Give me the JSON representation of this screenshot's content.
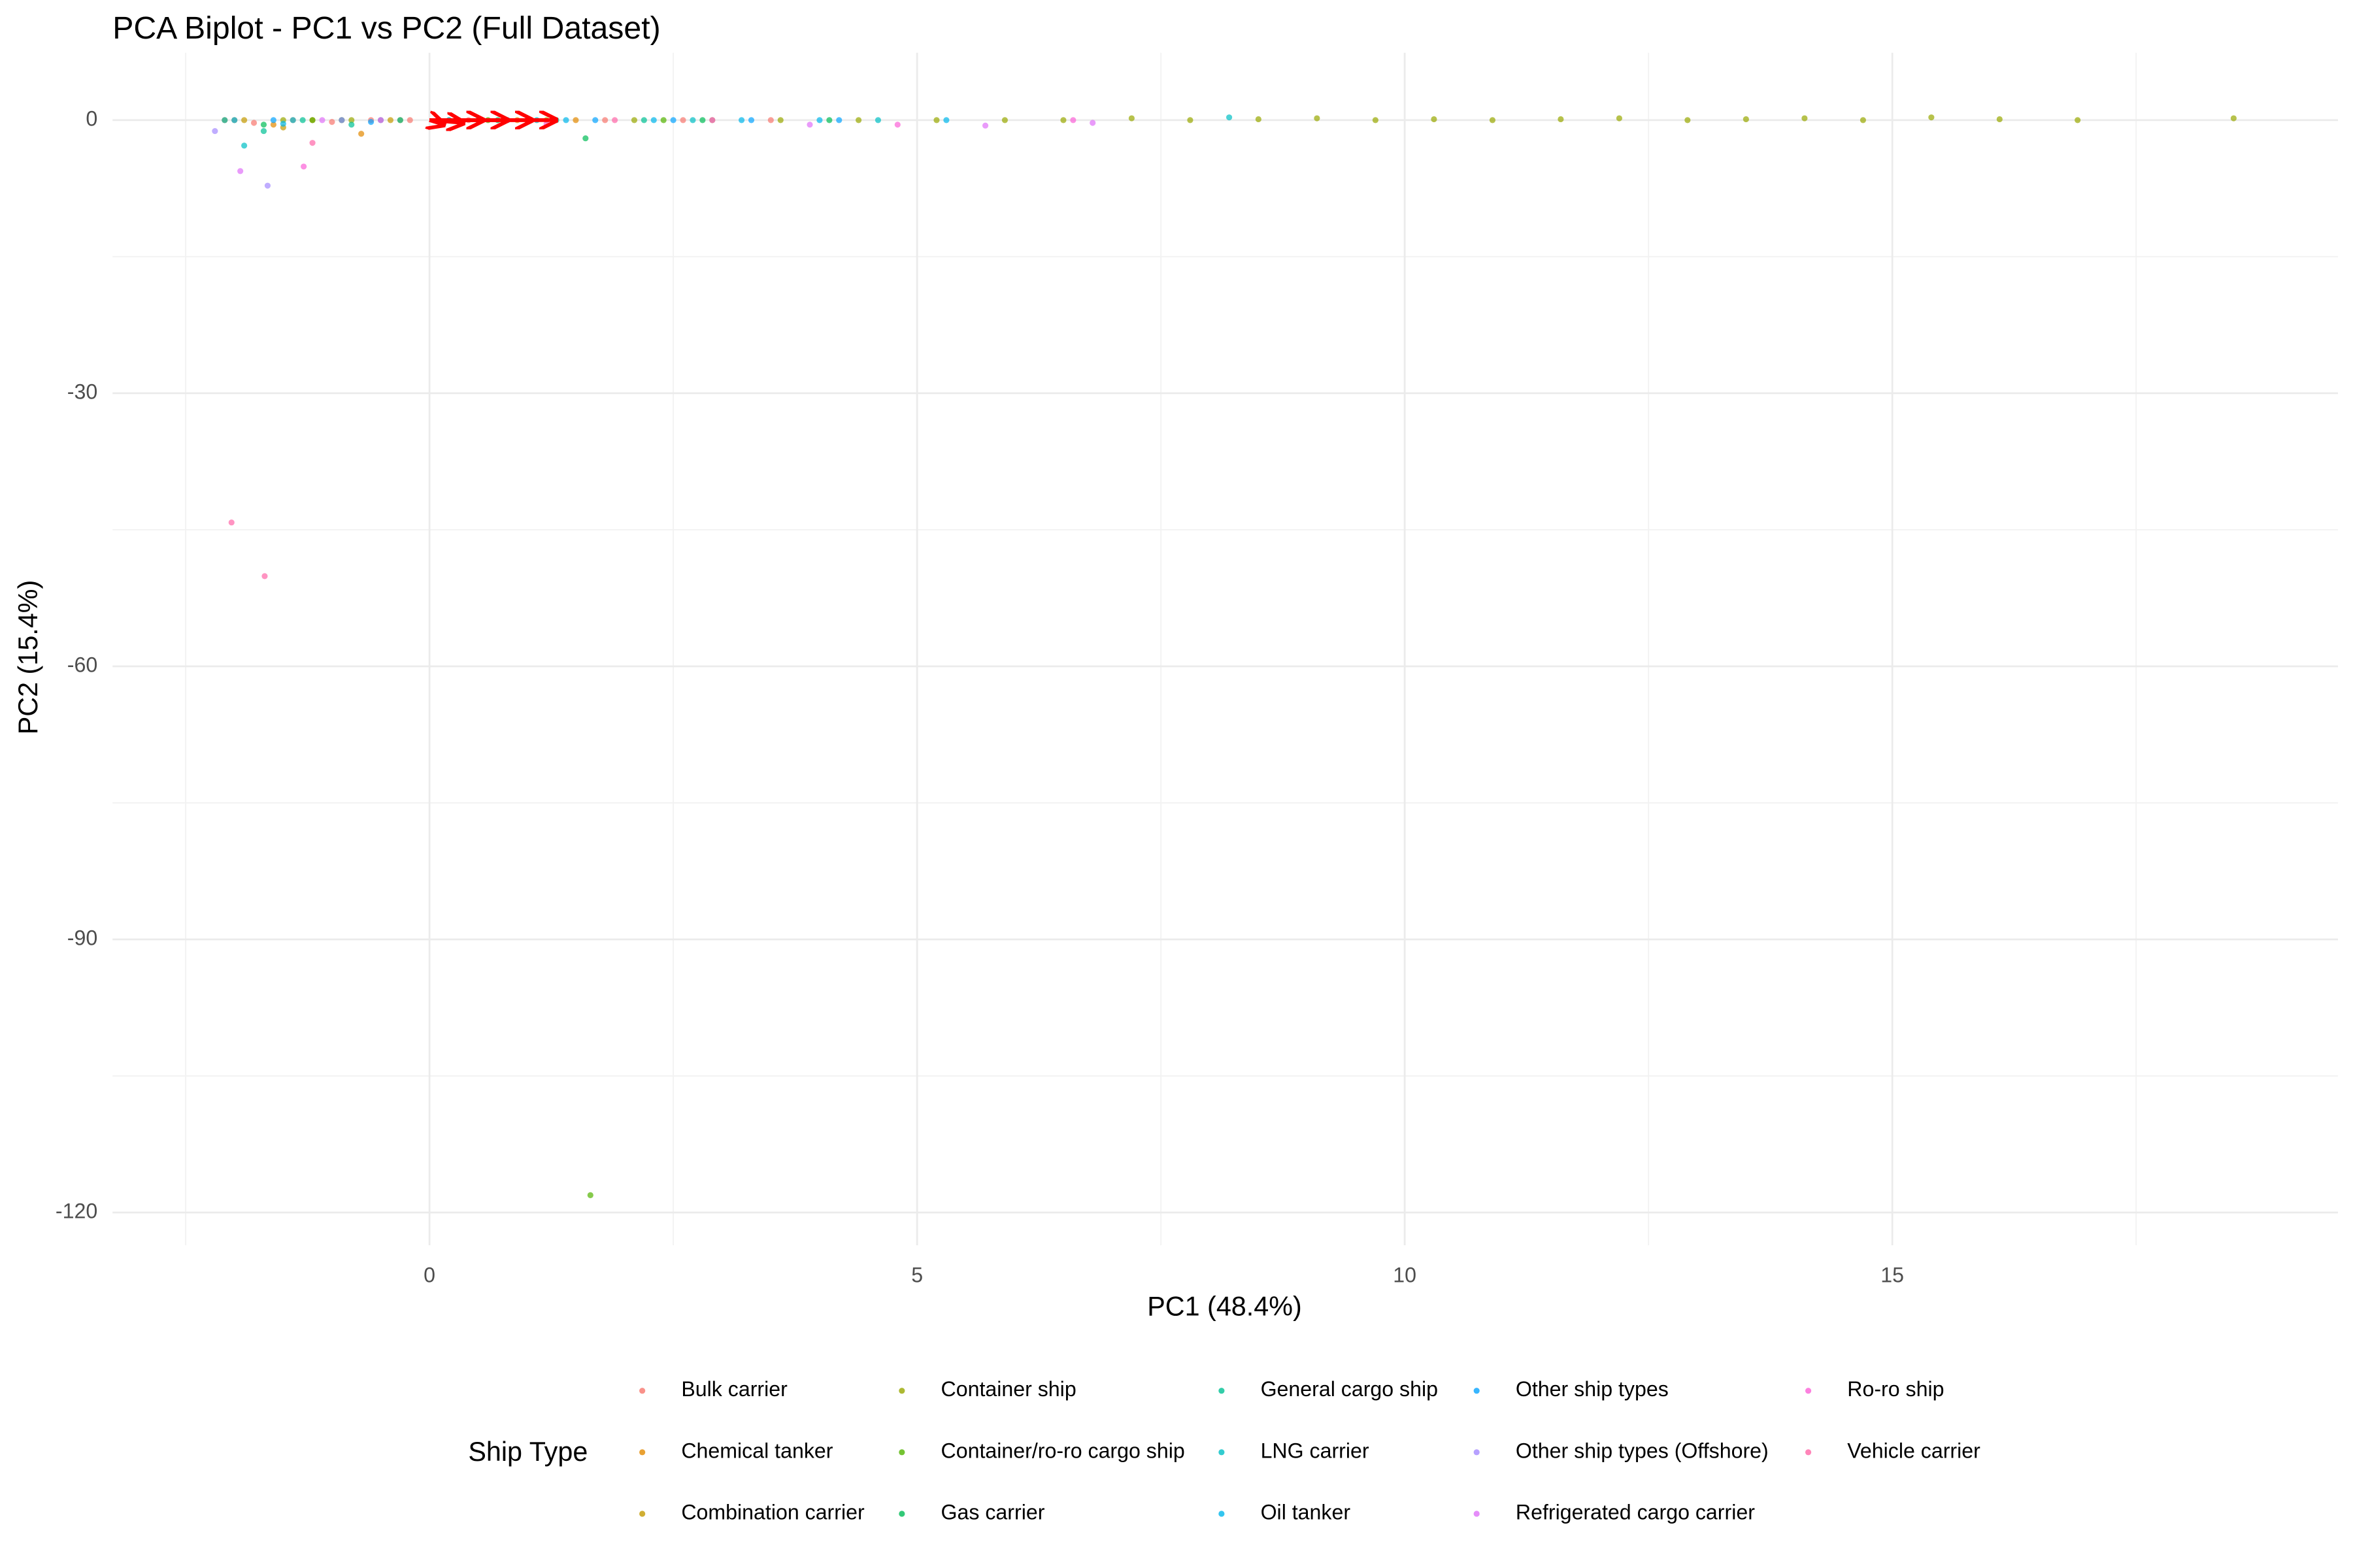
{
  "chart_data": {
    "type": "scatter",
    "title": "PCA Biplot - PC1 vs PC2 (Full Dataset)",
    "x_label": "PC1 (48.4%)",
    "y_label": "PC2 (15.4%)",
    "legend_title": "Ship Type",
    "xlim": [
      -3.25,
      19.57
    ],
    "ylim": [
      -123.6,
      7.4
    ],
    "xticks": [
      0,
      5,
      10,
      15
    ],
    "yticks": [
      -120,
      -90,
      -60,
      -30,
      0
    ],
    "xminor": [
      -2.5,
      2.5,
      7.5,
      12.5,
      17.5
    ],
    "yminor": [
      -105,
      -75,
      -45,
      -15
    ],
    "grid": true,
    "loadings": {
      "color": "#ff0000",
      "x": [
        0.15,
        0.35,
        0.55,
        0.8,
        1.05,
        1.3
      ],
      "y": [
        -0.5,
        -0.3,
        0,
        0,
        0,
        0
      ]
    },
    "series": [
      {
        "name": "Bulk carrier",
        "color": "#F8766D",
        "x": [
          -2.1,
          -1.8,
          -1.4,
          -1.0,
          -0.6,
          -0.2,
          0.4,
          1.0,
          1.8,
          2.6,
          3.5
        ],
        "values": [
          0,
          -0.3,
          0,
          -0.2,
          0,
          0,
          0,
          0,
          0,
          0,
          0
        ]
      },
      {
        "name": "Chemical tanker",
        "color": "#E38900",
        "x": [
          -2.0,
          -1.6,
          -1.2,
          -0.7,
          -0.3,
          0.2,
          0.9,
          1.5
        ],
        "values": [
          0,
          -0.5,
          0,
          -1.5,
          0,
          0,
          0,
          0
        ]
      },
      {
        "name": "Combination carrier",
        "color": "#C49A00",
        "x": [
          -1.9,
          -1.5,
          -0.9,
          -0.4,
          0.5
        ],
        "values": [
          0,
          -0.8,
          0,
          0,
          0
        ]
      },
      {
        "name": "Container ship",
        "color": "#99A800",
        "x": [
          -1.5,
          -0.8,
          0.3,
          1.2,
          2.1,
          2.9,
          3.6,
          4.4,
          5.2,
          5.9,
          6.5,
          7.2,
          7.8,
          8.5,
          9.1,
          9.7,
          10.3,
          10.9,
          11.6,
          12.2,
          12.9,
          13.5,
          14.1,
          14.7,
          15.4,
          16.1,
          16.9,
          18.5
        ],
        "values": [
          0,
          0,
          0,
          0,
          0,
          0,
          0,
          0,
          0,
          0,
          0,
          0.2,
          0,
          0.1,
          0.2,
          0,
          0.1,
          0,
          0.1,
          0.2,
          0,
          0.1,
          0.2,
          0,
          0.3,
          0.1,
          0,
          0.2
        ]
      },
      {
        "name": "Container/ro-ro cargo ship",
        "color": "#53B400",
        "x": [
          -1.2,
          0.6,
          1.65,
          2.4
        ],
        "values": [
          0,
          0,
          -118.1,
          0
        ]
      },
      {
        "name": "Gas carrier",
        "color": "#00BC56",
        "x": [
          -1.7,
          -0.9,
          0.7,
          1.6,
          2.8,
          4.1
        ],
        "values": [
          -0.5,
          0,
          0,
          -2,
          0,
          0
        ]
      },
      {
        "name": "General cargo ship",
        "color": "#00C094",
        "x": [
          -2.1,
          -1.7,
          -1.3,
          -0.8,
          -0.3,
          0.5,
          1.3,
          2.2
        ],
        "values": [
          0,
          -1.2,
          0,
          -0.5,
          0,
          0,
          0,
          0
        ]
      },
      {
        "name": "LNG carrier",
        "color": "#00BFC4",
        "x": [
          -1.9,
          -1.4,
          1.1,
          2.7,
          4.6,
          8.2
        ],
        "values": [
          -2.8,
          0,
          0,
          0,
          0,
          0.3
        ]
      },
      {
        "name": "Oil tanker",
        "color": "#00B6EB",
        "x": [
          -2.0,
          -1.5,
          -0.5,
          0.2,
          1.4,
          2.3,
          3.2,
          4.0,
          5.3
        ],
        "values": [
          0,
          -0.4,
          0,
          0,
          0,
          0,
          0,
          0,
          0
        ]
      },
      {
        "name": "Other ship types",
        "color": "#06A4FF",
        "x": [
          -1.6,
          -0.6,
          0.8,
          1.7,
          2.5,
          3.3,
          4.2
        ],
        "values": [
          0,
          -0.2,
          0,
          0,
          0,
          0,
          0
        ]
      },
      {
        "name": "Other ship types (Offshore)",
        "color": "#A58AFF",
        "x": [
          -2.2,
          -1.66,
          -0.9
        ],
        "values": [
          -1.2,
          -7.2,
          0
        ]
      },
      {
        "name": "Refrigerated cargo carrier",
        "color": "#DF70F8",
        "x": [
          -1.94,
          -1.1,
          0.1,
          3.9,
          5.7,
          6.8
        ],
        "values": [
          -5.6,
          0,
          0,
          -0.5,
          -0.6,
          -0.3
        ]
      },
      {
        "name": "Ro-ro ship",
        "color": "#FB61D7",
        "x": [
          -1.29,
          -0.5,
          1.2,
          2.9,
          4.8,
          6.6
        ],
        "values": [
          -5.1,
          0,
          -0.4,
          0,
          -0.5,
          0
        ]
      },
      {
        "name": "Vehicle carrier",
        "color": "#FF66A8",
        "x": [
          -2.03,
          -1.69,
          -1.2,
          0.3,
          1.9
        ],
        "values": [
          -44.2,
          -50.1,
          -2.5,
          0,
          0
        ]
      }
    ]
  }
}
